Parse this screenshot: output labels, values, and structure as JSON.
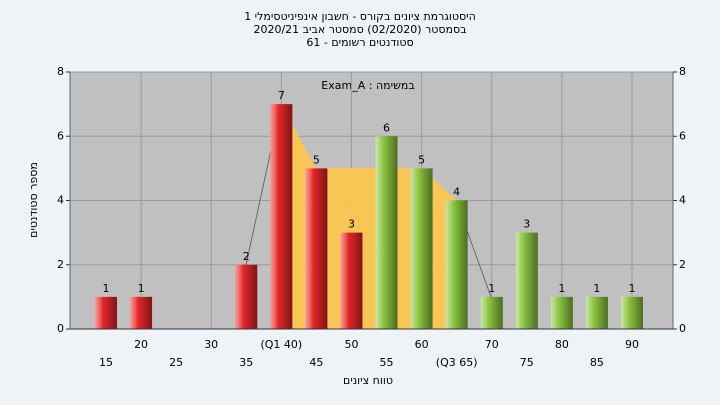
{
  "chart_data": {
    "type": "bar",
    "title": "היסטוגרמת ציונים בקורס - חשבון אינפיניטסימלי 1",
    "subtitle": "בסמסטר  (02/2020)  סמסטר אביב 2020/21",
    "subtitle2": "סטודנטים רשומים - 61",
    "annotation": "במשימה : Exam_A",
    "x_label": "טווח ציונים",
    "y_label": "מספר סטודנטים",
    "categories": [
      "15",
      "20",
      "25",
      "30",
      "35",
      "(Q1 40)",
      "45",
      "50",
      "55",
      "60",
      "(Q3 65)",
      "70",
      "75",
      "80",
      "85",
      "90"
    ],
    "values": [
      1,
      1,
      0,
      0,
      2,
      7,
      5,
      3,
      6,
      5,
      4,
      1,
      3,
      1,
      1,
      1
    ],
    "colors": [
      "#e8262b",
      "#e8262b",
      "#e8262b",
      "#e8262b",
      "#e8262b",
      "#e8262b",
      "#e8262b",
      "#e8262b",
      "#8dc63f",
      "#8dc63f",
      "#8dc63f",
      "#8dc63f",
      "#8dc63f",
      "#8dc63f",
      "#8dc63f",
      "#8dc63f"
    ],
    "ylim": [
      0,
      8
    ],
    "yticks": [
      0,
      2,
      4,
      6,
      8
    ],
    "grid": true
  }
}
